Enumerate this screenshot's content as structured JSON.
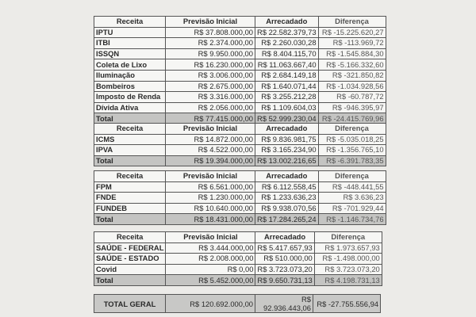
{
  "headers": [
    "Receita",
    "Previsão Inicial",
    "Arrecadado",
    "Diferença"
  ],
  "tables": [
    {
      "rows": [
        [
          "IPTU",
          "R$ 37.808.000,00",
          "R$ 22.582.379,73",
          "R$ -15.225.620,27"
        ],
        [
          "ITBI",
          "R$ 2.374.000,00",
          "R$ 2.260.030,28",
          "R$ -113.969,72"
        ],
        [
          "ISSQN",
          "R$ 9.950.000,00",
          "R$ 8.404.115,70",
          "R$ -1.545.884,30"
        ],
        [
          "Coleta de Lixo",
          "R$ 16.230.000,00",
          "R$ 11.063.667,40",
          "R$ -5.166.332,60"
        ],
        [
          "Iluminação",
          "R$ 3.006.000,00",
          "R$ 2.684.149,18",
          "R$ -321.850,82"
        ],
        [
          "Bombeiros",
          "R$ 2.675.000,00",
          "R$ 1.640.071,44",
          "R$ -1.034.928,56"
        ],
        [
          "Imposto de Renda",
          "R$ 3.316.000,00",
          "R$ 3.255.212,28",
          "R$ -60.787,72"
        ],
        [
          "Dívida Ativa",
          "R$ 2.056.000,00",
          "R$ 1.109.604,03",
          "R$ -946.395,97"
        ]
      ],
      "total": [
        "Total",
        "R$ 77.415.000,00",
        "R$ 52.999.230,04",
        "R$ -24.415.769,96"
      ]
    },
    {
      "rows": [
        [
          "ICMS",
          "R$ 14.872.000,00",
          "R$ 9.836.981,75",
          "R$ -5.035.018,25"
        ],
        [
          "IPVA",
          "R$ 4.522.000,00",
          "R$ 3.165.234,90",
          "R$ -1.356.765,10"
        ]
      ],
      "total": [
        "Total",
        "R$ 19.394.000,00",
        "R$ 13.002.216,65",
        "R$ -6.391.783,35"
      ]
    },
    {
      "rows": [
        [
          "FPM",
          "R$ 6.561.000,00",
          "R$ 6.112.558,45",
          "R$ -448.441,55"
        ],
        [
          "FNDE",
          "R$ 1.230.000,00",
          "R$ 1.233.636,23",
          "R$ 3.636,23"
        ],
        [
          "FUNDEB",
          "R$ 10.640.000,00",
          "R$ 9.938.070,56",
          "R$ -701.929,44"
        ]
      ],
      "total": [
        "Total",
        "R$ 18.431.000,00",
        "R$ 17.284.265,24",
        "R$ -1.146.734,76"
      ]
    },
    {
      "rows": [
        [
          "SAÚDE - FEDERAL",
          "R$ 3.444.000,00",
          "R$ 5.417.657,93",
          "R$ 1.973.657,93"
        ],
        [
          "SAÚDE - ESTADO",
          "R$ 2.008.000,00",
          "R$ 510.000,00",
          "R$ -1.498.000,00"
        ],
        [
          "Covid",
          "R$ 0,00",
          "R$ 3.723.073,20",
          "R$ 3.723.073,20"
        ]
      ],
      "total": [
        "Total",
        "R$ 5.452.000,00",
        "R$ 9.650.731,13",
        "R$ 4.198.731,13"
      ]
    }
  ],
  "grand_total": [
    "TOTAL GERAL",
    "R$ 120.692.000,00",
    "R$ 92.936.443,06",
    "R$ -27.755.556,94"
  ]
}
